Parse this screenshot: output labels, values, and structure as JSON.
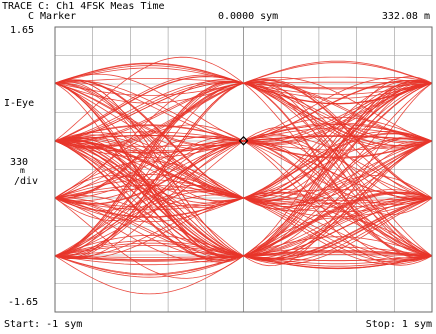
{
  "header": {
    "trace_title": "TRACE C: Ch1 4FSK Meas Time",
    "marker_label": "C Marker",
    "marker_x": "0.0000 sym",
    "marker_y": "332.08 m"
  },
  "chart_data": {
    "type": "line",
    "title": "TRACE C: Ch1 4FSK Meas Time",
    "trace_name": "I-Eye",
    "y_top_label": "1.65",
    "y_bottom_label": "-1.65",
    "scale_value": "330",
    "scale_unit": "m",
    "scale_per_div": "/div",
    "start_label": "Start: -1 sym",
    "stop_label": "Stop: 1 sym",
    "xlim": [
      -1,
      1
    ],
    "ylim": [
      -1.65,
      1.65
    ],
    "x_divisions": 10,
    "y_divisions": 10,
    "grid": true,
    "symbol_levels": [
      -1.0,
      -0.33,
      0.33,
      1.0
    ],
    "marker": {
      "x": 0.0,
      "y": 0.33208
    },
    "trace_color": "#e8352a",
    "grid_color": "#9a9a9a"
  }
}
